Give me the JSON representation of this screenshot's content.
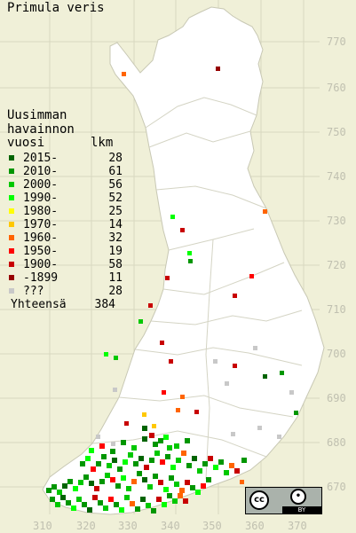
{
  "title": "Primula veris",
  "legend": {
    "heading": [
      "Uusimman",
      "havainnon"
    ],
    "col_year": "vuosi",
    "col_count": "lkm",
    "items": [
      {
        "label": "2015-",
        "count": "28",
        "color": "#006400"
      },
      {
        "label": "2010-",
        "count": "61",
        "color": "#009600"
      },
      {
        "label": "2000-",
        "count": "56",
        "color": "#00c800"
      },
      {
        "label": "1990-",
        "count": "52",
        "color": "#00ff00"
      },
      {
        "label": "1980-",
        "count": "25",
        "color": "#ffff00"
      },
      {
        "label": "1970-",
        "count": "14",
        "color": "#ffc800"
      },
      {
        "label": "1960-",
        "count": "32",
        "color": "#ff6400"
      },
      {
        "label": "1950-",
        "count": "19",
        "color": "#ff0000"
      },
      {
        "label": "1900-",
        "count": "58",
        "color": "#c80000"
      },
      {
        "label": "-1899",
        "count": "11",
        "color": "#960000"
      },
      {
        "label": "???",
        "count": "28",
        "color": "#c8c8c8"
      }
    ],
    "total_label": "Yhteensä",
    "total_count": "384"
  },
  "y_axis_labels": [
    "770",
    "760",
    "750",
    "740",
    "730",
    "720",
    "710",
    "700",
    "690",
    "680",
    "670"
  ],
  "x_axis_labels": [
    "310",
    "320",
    "330",
    "340",
    "350",
    "360",
    "370"
  ],
  "license": {
    "cc": "cc",
    "by": "BY"
  }
}
